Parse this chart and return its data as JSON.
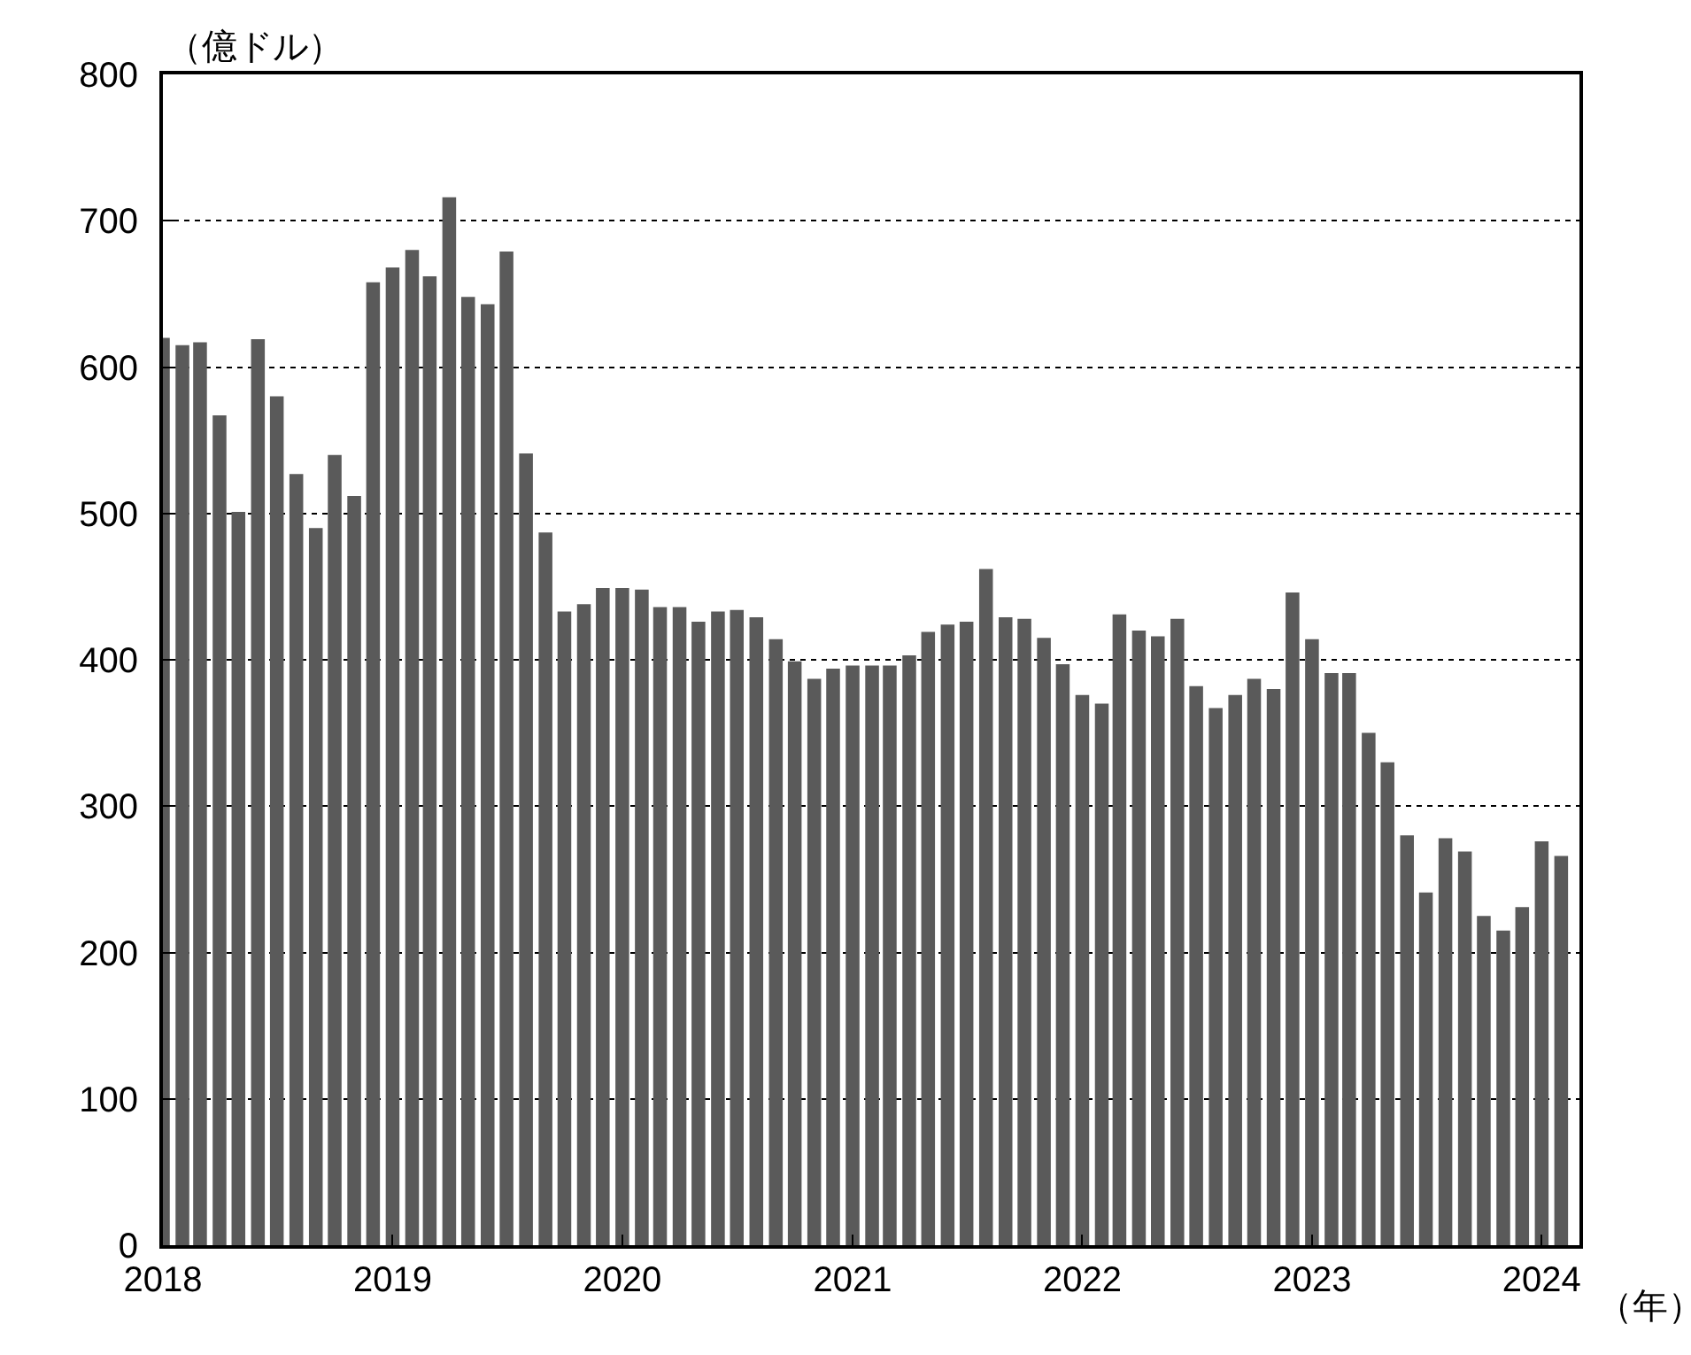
{
  "chart_data": {
    "type": "bar",
    "ylabel": "（億ドル）",
    "xlabel": "（年）",
    "color": "#5a5a5a",
    "x": [
      "2018-01",
      "2018-02",
      "2018-03",
      "2018-04",
      "2018-05",
      "2018-06",
      "2018-07",
      "2018-08",
      "2018-09",
      "2018-10",
      "2018-11",
      "2018-12",
      "2019-01",
      "2019-02",
      "2019-03",
      "2019-04",
      "2019-05",
      "2019-06",
      "2019-07",
      "2019-08",
      "2019-09",
      "2019-10",
      "2019-11",
      "2019-12",
      "2020-01",
      "2020-02",
      "2020-03",
      "2020-04",
      "2020-05",
      "2020-06",
      "2020-07",
      "2020-08",
      "2020-09",
      "2020-10",
      "2020-11",
      "2020-12",
      "2021-01",
      "2021-02",
      "2021-03",
      "2021-04",
      "2021-05",
      "2021-06",
      "2021-07",
      "2021-08",
      "2021-09",
      "2021-10",
      "2021-11",
      "2021-12",
      "2022-01",
      "2022-02",
      "2022-03",
      "2022-04",
      "2022-05",
      "2022-06",
      "2022-07",
      "2022-08",
      "2022-09",
      "2022-10",
      "2022-11",
      "2022-12",
      "2023-01",
      "2023-02",
      "2023-03",
      "2023-04",
      "2023-05",
      "2023-06",
      "2023-07",
      "2023-08",
      "2023-09",
      "2023-10",
      "2023-11",
      "2023-12",
      "2024-01",
      "2024-02"
    ],
    "values": [
      620,
      615,
      617,
      567,
      501,
      619,
      580,
      527,
      490,
      540,
      512,
      658,
      668,
      680,
      662,
      716,
      648,
      643,
      679,
      541,
      487,
      433,
      438,
      449,
      449,
      448,
      436,
      436,
      426,
      433,
      434,
      429,
      414,
      399,
      387,
      394,
      396,
      396,
      396,
      403,
      419,
      424,
      426,
      462,
      429,
      428,
      415,
      397,
      376,
      370,
      431,
      420,
      416,
      428,
      382,
      367,
      376,
      387,
      380,
      446,
      414,
      391,
      391,
      350,
      330,
      280,
      241,
      278,
      269,
      225,
      215,
      231,
      276,
      266
    ],
    "xlim": [
      "2018-01",
      "2024-03"
    ],
    "xticks": [
      "2018",
      "2019",
      "2020",
      "2021",
      "2022",
      "2023",
      "2024"
    ],
    "ylim": [
      0,
      800
    ],
    "yticks": [
      0,
      100,
      200,
      300,
      400,
      500,
      600,
      700,
      800
    ],
    "grid": "y"
  }
}
